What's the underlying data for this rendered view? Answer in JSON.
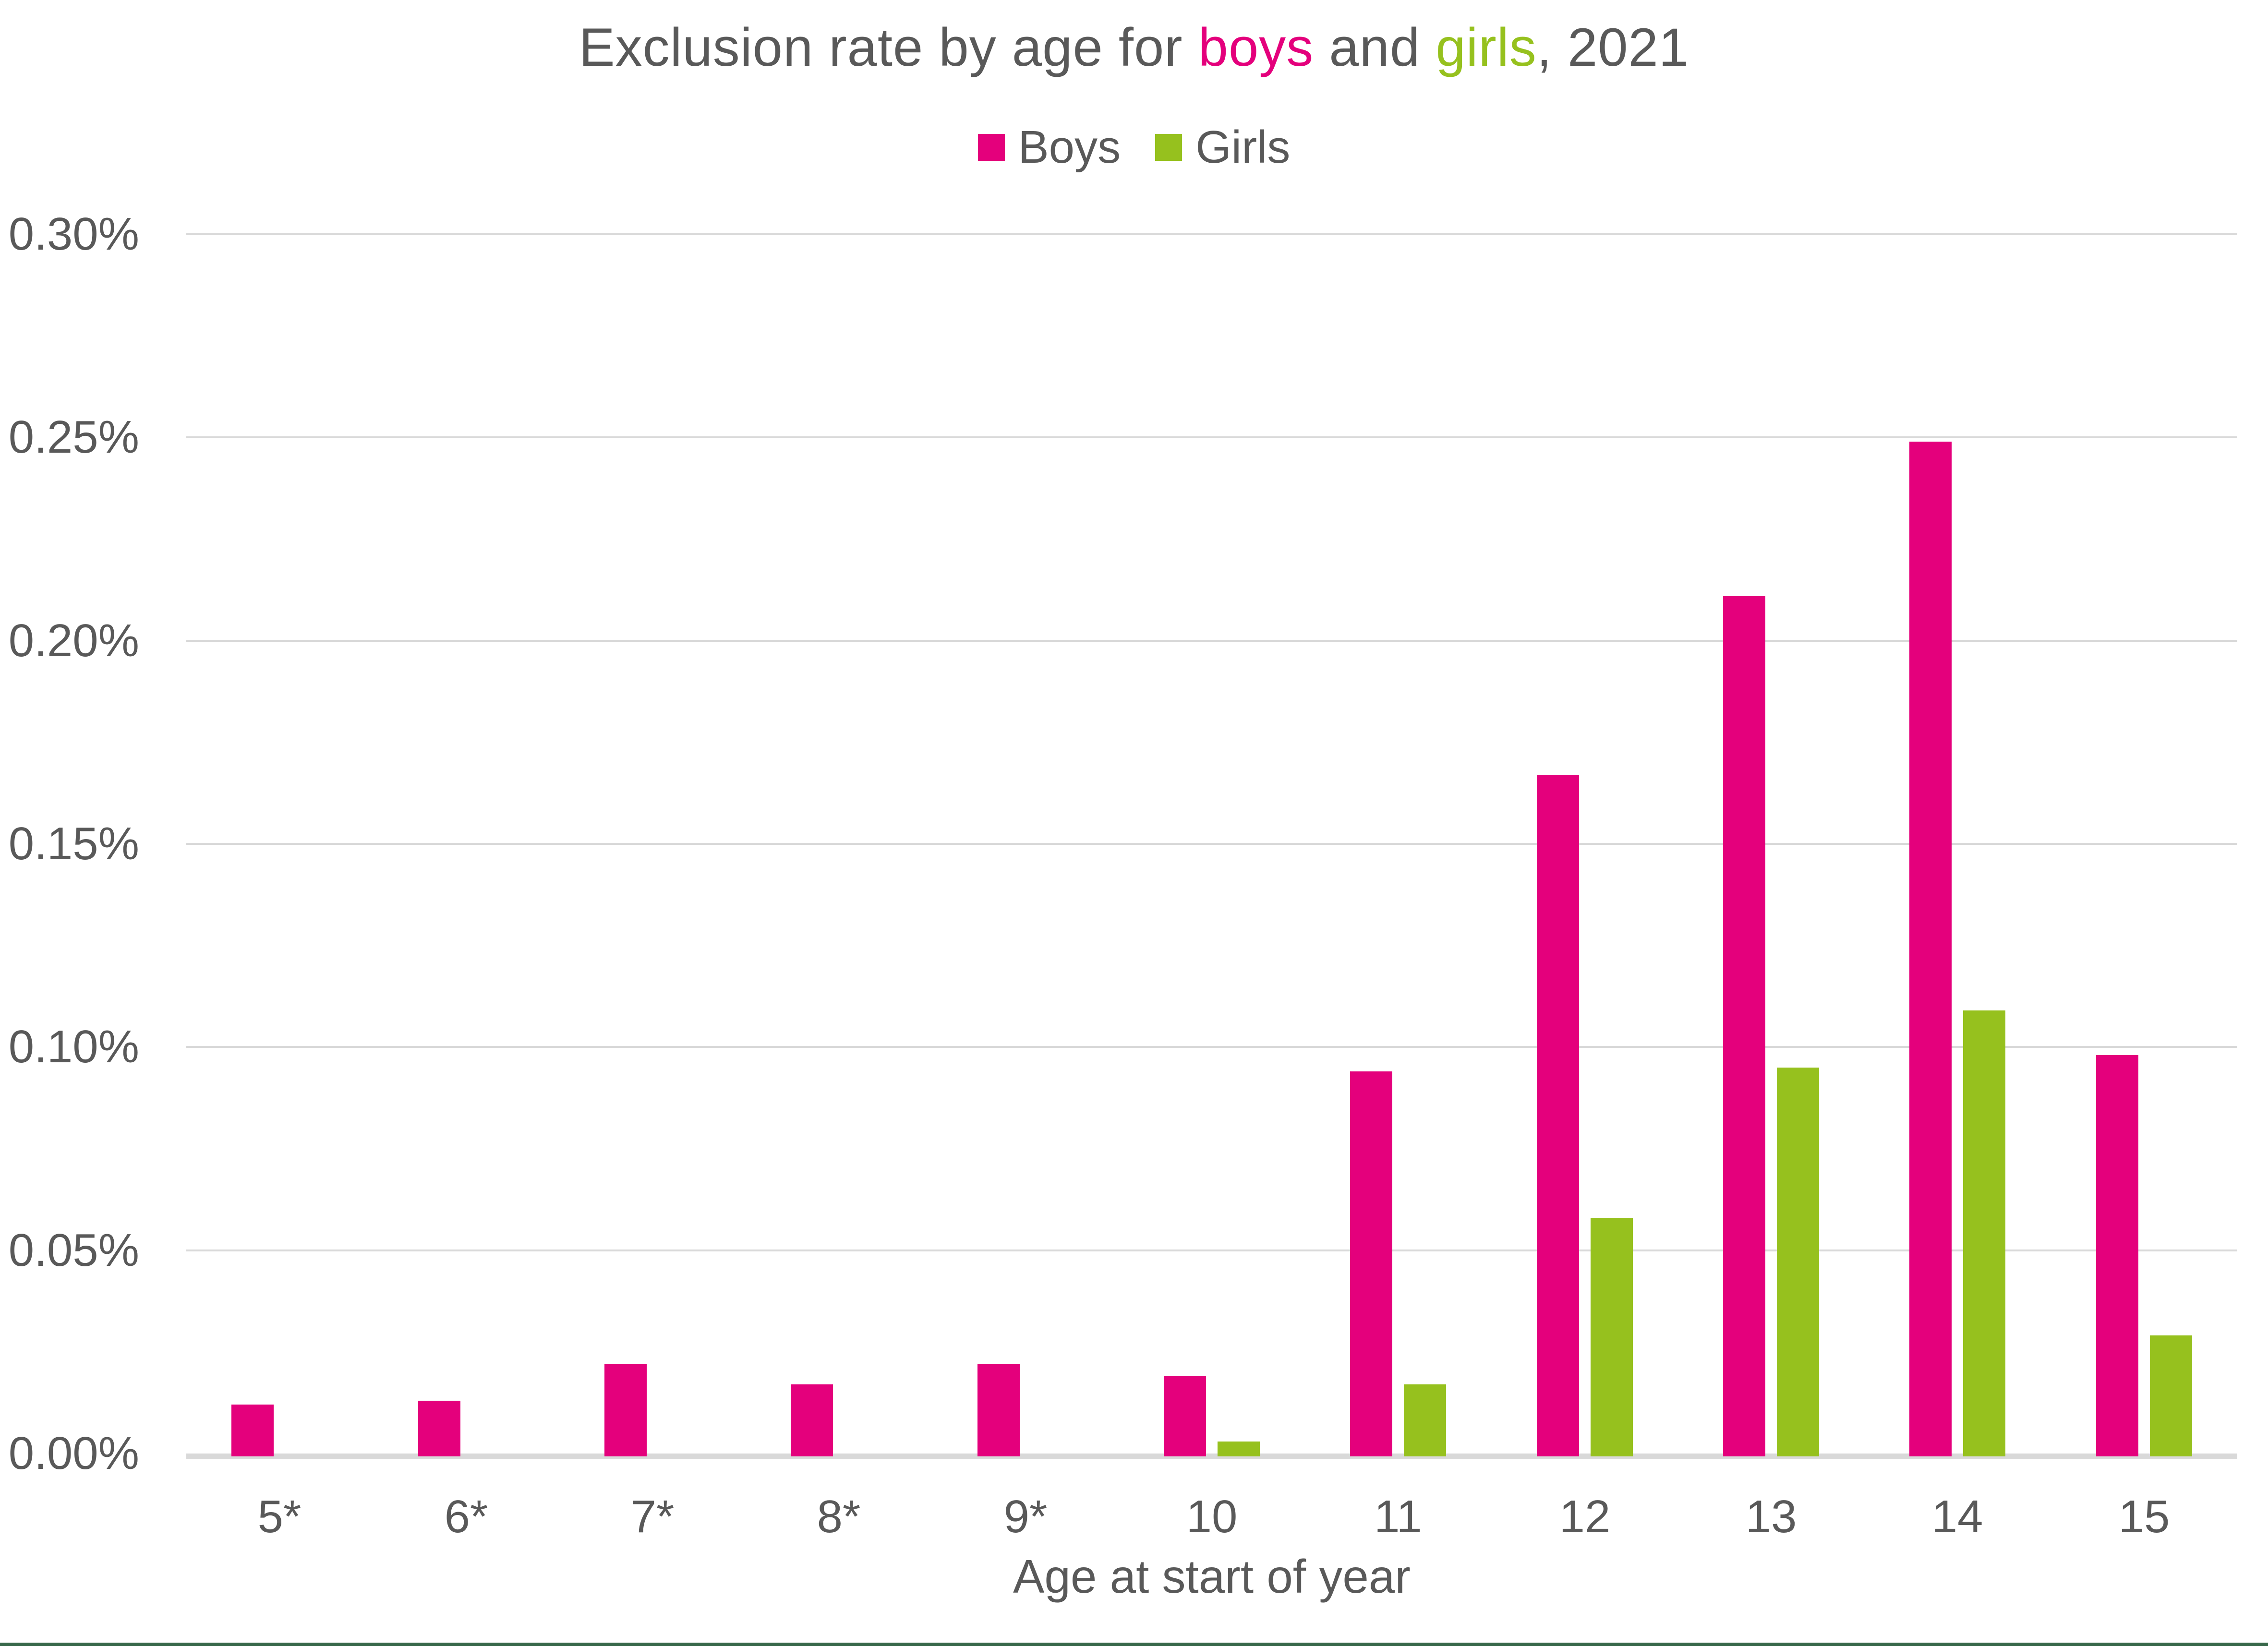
{
  "title": {
    "part1": "Exclusion rate by age for ",
    "boys_word": "boys",
    "part2": " and ",
    "girls_word": "girls",
    "part3": ", 2021"
  },
  "chart_data": {
    "type": "bar",
    "title": "Exclusion rate by age for boys and girls, 2021",
    "categories": [
      "5*",
      "6*",
      "7*",
      "8*",
      "9*",
      "10",
      "11",
      "12",
      "13",
      "14",
      "15"
    ],
    "series": [
      {
        "name": "Boys",
        "color": "#E4007C",
        "values": [
          0.012,
          0.013,
          0.022,
          0.017,
          0.022,
          0.019,
          0.094,
          0.167,
          0.211,
          0.249,
          0.098
        ]
      },
      {
        "name": "Girls",
        "color": "#96C11E",
        "values": [
          null,
          null,
          null,
          null,
          null,
          0.003,
          0.017,
          0.058,
          0.095,
          0.109,
          0.029
        ]
      }
    ],
    "xlabel": "Age at start of year",
    "ylabel": "",
    "ylim": [
      0,
      0.3
    ],
    "ytick_step": 0.05,
    "yticks": [
      "0.30%",
      "0.25%",
      "0.20%",
      "0.15%",
      "0.10%",
      "0.05%",
      "0.00%"
    ],
    "grid": true,
    "legend_position": "top-center",
    "unit": "percent"
  },
  "colors": {
    "text": "#595959",
    "gridline": "#D9D9D9",
    "axis_line": "#D9D9D9",
    "footer_rule": "#38684A",
    "background": "#FFFFFF"
  }
}
